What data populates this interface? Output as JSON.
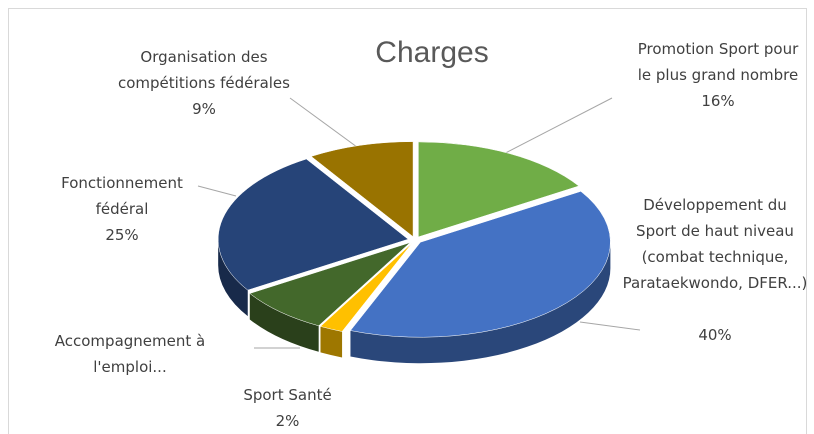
{
  "chart_data": {
    "type": "pie3d",
    "title": "Charges",
    "categories": [
      "Promotion Sport pour le plus grand nombre",
      "Développement du Sport de haut niveau (combat technique, Parataekwondo, DFER...)",
      "Sport Santé",
      "Accompagnement à l'emploi...",
      "Fonctionnement fédéral",
      "Organisation des compétitions fédérales"
    ],
    "values": [
      16,
      40,
      2,
      8,
      25,
      9
    ],
    "value_labels": [
      "16%",
      "40%",
      "2%",
      null,
      "25%",
      "9%"
    ],
    "colors": [
      "#70ad47",
      "#4472c4",
      "#ffc000",
      "#43682b",
      "#264478",
      "#997300"
    ]
  }
}
